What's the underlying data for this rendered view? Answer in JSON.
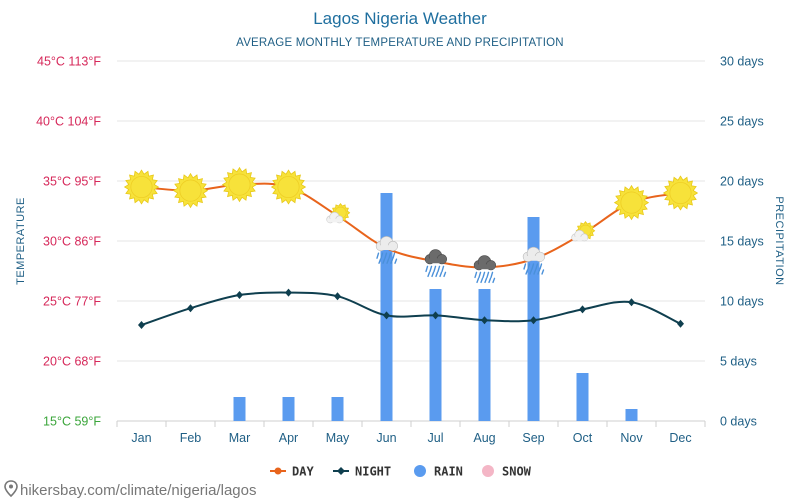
{
  "chart_data": {
    "type": "line+bar",
    "title": "Lagos Nigeria Weather",
    "subtitle": "AVERAGE MONTHLY TEMPERATURE AND PRECIPITATION",
    "categories": [
      "Jan",
      "Feb",
      "Mar",
      "Apr",
      "May",
      "Jun",
      "Jul",
      "Aug",
      "Sep",
      "Oct",
      "Nov",
      "Dec"
    ],
    "series": [
      {
        "name": "DAY",
        "type": "line",
        "axis": "left",
        "unit": "°C",
        "values": [
          34.5,
          34.2,
          34.7,
          34.5,
          32.1,
          29.4,
          28.3,
          27.8,
          28.5,
          30.6,
          33.2,
          34.0
        ]
      },
      {
        "name": "NIGHT",
        "type": "line",
        "axis": "left",
        "unit": "°C",
        "values": [
          23.0,
          24.4,
          25.5,
          25.7,
          25.4,
          23.8,
          23.8,
          23.4,
          23.4,
          24.3,
          24.9,
          23.1
        ]
      },
      {
        "name": "RAIN",
        "type": "bar",
        "axis": "right",
        "unit": "days",
        "values": [
          0,
          0,
          2,
          2,
          2,
          19,
          11,
          11,
          17,
          4,
          1,
          0
        ]
      },
      {
        "name": "SNOW",
        "type": "bar",
        "axis": "right",
        "unit": "days",
        "values": [
          0,
          0,
          0,
          0,
          0,
          0,
          0,
          0,
          0,
          0,
          0,
          0
        ]
      }
    ],
    "weather_icons": [
      "sun",
      "sun",
      "sun",
      "sun",
      "sun-cloud",
      "cloud-rain",
      "storm-rain",
      "storm-rain",
      "cloud-rain",
      "sun-cloud",
      "sun",
      "sun"
    ],
    "ylim_left": [
      15,
      45
    ],
    "ylim_right": [
      0,
      30
    ],
    "yticks_left": [
      {
        "value": 45,
        "label": "45°C 113°F",
        "color": "#d6285a"
      },
      {
        "value": 40,
        "label": "40°C 104°F",
        "color": "#d6285a"
      },
      {
        "value": 35,
        "label": "35°C 95°F",
        "color": "#d6285a"
      },
      {
        "value": 30,
        "label": "30°C 86°F",
        "color": "#d6285a"
      },
      {
        "value": 25,
        "label": "25°C 77°F",
        "color": "#d6285a"
      },
      {
        "value": 20,
        "label": "20°C 68°F",
        "color": "#d6285a"
      },
      {
        "value": 15,
        "label": "15°C 59°F",
        "color": "#3aa53a"
      }
    ],
    "yticks_right": [
      {
        "value": 30,
        "label": "30 days"
      },
      {
        "value": 25,
        "label": "25 days"
      },
      {
        "value": 20,
        "label": "20 days"
      },
      {
        "value": 15,
        "label": "15 days"
      },
      {
        "value": 10,
        "label": "10 days"
      },
      {
        "value": 5,
        "label": "5 days"
      },
      {
        "value": 0,
        "label": "0 days"
      }
    ],
    "ylabel_left": "TEMPERATURE",
    "ylabel_right": "PRECIPITATION",
    "legend_position": "bottom",
    "grid": true
  },
  "legend": [
    {
      "name": "DAY",
      "color": "#e8641c",
      "marker": "line-dot"
    },
    {
      "name": "NIGHT",
      "color": "#0f3f4f",
      "marker": "line-diamond"
    },
    {
      "name": "RAIN",
      "color": "#5a9bef",
      "marker": "dot"
    },
    {
      "name": "SNOW",
      "color": "#f4b6c6",
      "marker": "dot"
    }
  ],
  "source": "hikersbay.com/climate/nigeria/lagos",
  "colors": {
    "day_line": "#e8641c",
    "night_line": "#0f3f4f",
    "rain_bar": "#5a9bef",
    "grid": "#e6e6e6",
    "sun": "#f7e23a",
    "sun_edge": "#e8c91a"
  }
}
